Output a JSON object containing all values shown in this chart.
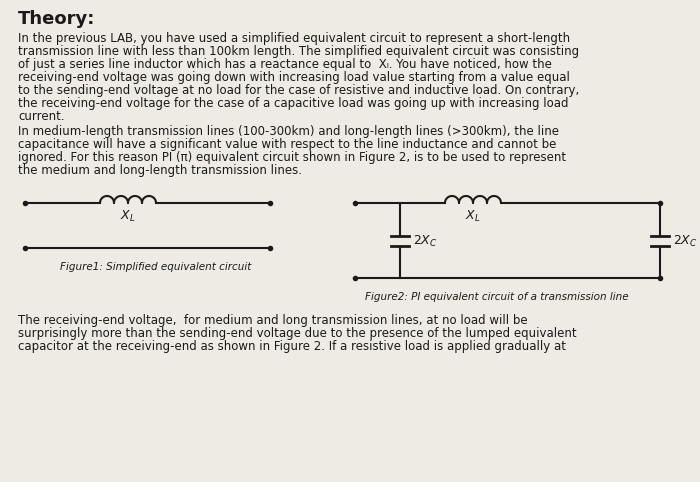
{
  "bg_color": "#eeebe5",
  "title": "Theory:",
  "para1_lines": [
    "In the previous LAB, you have used a simplified equivalent circuit to represent a short-length",
    "transmission line with less than 100km length. The simplified equivalent circuit was consisting",
    "of just a series line inductor which has a reactance equal to  Xₗ. You have noticed, how the",
    "receiving-end voltage was going down with increasing load value starting from a value equal",
    "to the sending-end voltage at no load for the case of resistive and inductive load. On contrary,",
    "the receiving-end voltage for the case of a capacitive load was going up with increasing load",
    "current."
  ],
  "para2_lines": [
    "In medium-length transmission lines (100-300km) and long-length lines (>300km), the line",
    "capacitance will have a significant value with respect to the line inductance and cannot be",
    "ignored. For this reason PI (π) equivalent circuit shown in Figure 2, is to be used to represent",
    "the medium and long-length transmission lines."
  ],
  "fig1_caption": "Figure1: Simplified equivalent circuit",
  "fig2_caption": "Figure2: PI equivalent circuit of a transmission line",
  "para3_lines": [
    "The receiving-end voltage,  for medium and long transmission lines, at no load will be",
    "surprisingly more than the sending-end voltage due to the presence of the lumped equivalent",
    "capacitor at the receiving-end as shown in Figure 2. If a resistive load is applied gradually at"
  ],
  "text_color": "#1a1a1a",
  "line_color": "#1a1a1a",
  "body_fontsize": 8.5,
  "title_fontsize": 13
}
